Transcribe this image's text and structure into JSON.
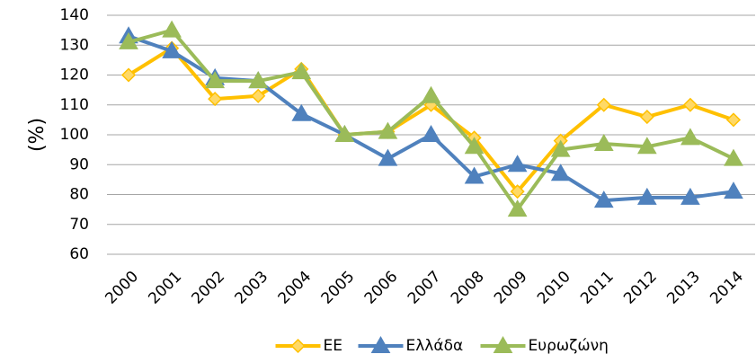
{
  "chart_data": {
    "type": "line",
    "y_label": "(%)",
    "categories": [
      "2000",
      "2001",
      "2002",
      "2003",
      "2004",
      "2005",
      "2006",
      "2007",
      "2008",
      "2009",
      "2010",
      "2011",
      "2012",
      "2013",
      "2014"
    ],
    "series": [
      {
        "name": "ΕΕ",
        "color": "#FFC000",
        "marker": "diamond",
        "values": [
          120,
          129,
          112,
          113,
          122,
          100,
          101,
          110,
          99,
          81,
          98,
          110,
          106,
          110,
          105
        ]
      },
      {
        "name": "Ελλάδα",
        "color": "#4F81BD",
        "marker": "triangle",
        "values": [
          133,
          128,
          119,
          118,
          107,
          100,
          92,
          100,
          86,
          90,
          87,
          78,
          79,
          79,
          81
        ]
      },
      {
        "name": "Ευρωζώνη",
        "color": "#9BBB59",
        "marker": "triangle",
        "values": [
          131,
          135,
          118,
          118,
          121,
          100,
          101,
          113,
          96,
          75,
          95,
          97,
          96,
          99,
          92
        ]
      }
    ],
    "ylim": [
      60,
      140
    ],
    "yticks": [
      60,
      70,
      80,
      90,
      100,
      110,
      120,
      130,
      140
    ],
    "grid": true
  }
}
